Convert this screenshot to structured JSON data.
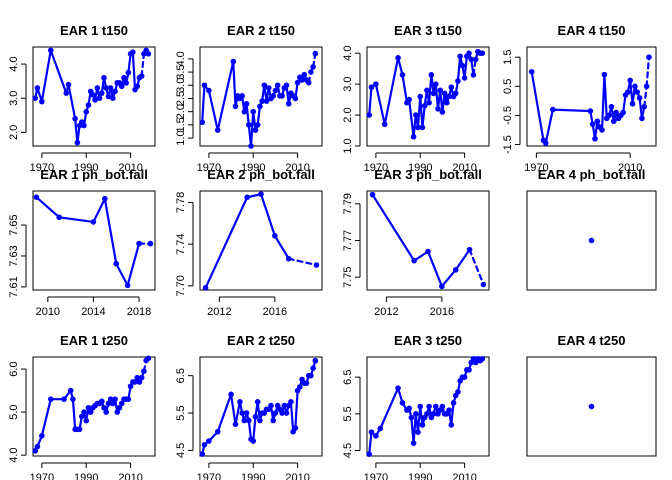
{
  "chart_data": [
    {
      "type": "line",
      "title": "EAR 1 t150",
      "xlim": [
        1966,
        2021
      ],
      "ylim": [
        1.6,
        4.5
      ],
      "xticks": [
        1970,
        1990,
        2010
      ],
      "yticks": [
        2.0,
        3.0,
        4.0
      ],
      "ytick_labels": [
        "2.0",
        "3.0",
        "4.0"
      ],
      "color": "#0000ff",
      "x": [
        1967,
        1968,
        1970,
        1974,
        1981,
        1982,
        1985,
        1986,
        1987,
        1988,
        1989,
        1990,
        1991,
        1992,
        1993,
        1994,
        1995,
        1996,
        1997,
        1998,
        1999,
        2000,
        2001,
        2002,
        2003,
        2004,
        2005,
        2006,
        2007,
        2008,
        2009,
        2010,
        2011,
        2012,
        2013,
        2014,
        2015,
        2016,
        2017,
        2018
      ],
      "y": [
        3.0,
        3.3,
        2.9,
        4.4,
        3.15,
        3.4,
        2.4,
        1.7,
        2.2,
        2.3,
        2.2,
        2.6,
        2.8,
        3.2,
        3.1,
        2.95,
        3.3,
        3.0,
        3.15,
        3.6,
        3.3,
        3.05,
        3.3,
        3.0,
        3.2,
        3.45,
        3.45,
        3.35,
        3.6,
        3.45,
        3.75,
        4.3,
        4.35,
        3.25,
        3.35,
        3.6,
        3.65,
        4.3,
        4.4,
        4.3
      ],
      "dashed_from_index": 36
    },
    {
      "type": "line",
      "title": "EAR 2 t150",
      "xlim": [
        1966,
        2021
      ],
      "ylim": [
        0.7,
        4.45
      ],
      "xticks": [
        1970,
        1990,
        2010
      ],
      "yticks": [
        1.0,
        1.5,
        2.0,
        2.5,
        3.0,
        3.5,
        4.0
      ],
      "ytick_labels": [
        "1.0",
        "1.5",
        "2.0",
        "2.5",
        "3.0",
        "3.5",
        "4.0"
      ],
      "color": "#0000ff",
      "x": [
        1967,
        1968,
        1970,
        1974,
        1981,
        1982,
        1983,
        1984,
        1985,
        1986,
        1987,
        1988,
        1989,
        1990,
        1991,
        1992,
        1993,
        1994,
        1995,
        1996,
        1997,
        1998,
        1999,
        2000,
        2001,
        2002,
        2003,
        2004,
        2005,
        2006,
        2007,
        2008,
        2009,
        2010,
        2011,
        2012,
        2013,
        2014,
        2015,
        2016,
        2017,
        2018
      ],
      "y": [
        1.6,
        3.0,
        2.8,
        1.3,
        3.9,
        2.2,
        2.6,
        2.5,
        2.6,
        2.0,
        2.3,
        1.5,
        0.7,
        2.0,
        1.3,
        1.5,
        2.2,
        2.4,
        3.0,
        2.4,
        2.9,
        2.5,
        2.6,
        2.8,
        3.0,
        2.6,
        2.6,
        2.9,
        3.0,
        2.3,
        2.7,
        2.6,
        2.5,
        3.1,
        3.3,
        3.2,
        3.4,
        3.2,
        3.1,
        3.5,
        3.7,
        4.2
      ],
      "dashed_from_index": 38
    },
    {
      "type": "line",
      "title": "EAR 3 t150",
      "xlim": [
        1966,
        2021
      ],
      "ylim": [
        1.0,
        4.2
      ],
      "xticks": [
        1970,
        1990,
        2010
      ],
      "yticks": [
        1.0,
        2.0,
        3.0,
        4.0
      ],
      "ytick_labels": [
        "1.0",
        "2.0",
        "3.0",
        "4.0"
      ],
      "color": "#0000ff",
      "x": [
        1967,
        1968,
        1970,
        1974,
        1980,
        1982,
        1984,
        1985,
        1987,
        1988,
        1989,
        1990,
        1991,
        1992,
        1993,
        1994,
        1995,
        1996,
        1997,
        1998,
        1999,
        2000,
        2001,
        2002,
        2003,
        2004,
        2005,
        2006,
        2007,
        2008,
        2009,
        2010,
        2011,
        2012,
        2013,
        2014,
        2015,
        2016,
        2017,
        2018
      ],
      "y": [
        2.0,
        2.9,
        3.0,
        1.7,
        3.85,
        3.3,
        2.4,
        2.5,
        1.3,
        2.0,
        1.6,
        2.6,
        1.6,
        2.3,
        2.8,
        2.4,
        3.3,
        2.7,
        3.0,
        2.2,
        2.8,
        2.1,
        2.7,
        2.4,
        2.6,
        2.9,
        2.6,
        2.7,
        3.1,
        3.9,
        3.6,
        3.2,
        3.9,
        4.0,
        3.8,
        3.3,
        3.8,
        4.05,
        4.0,
        4.0
      ],
      "dashed_from_index": 35
    },
    {
      "type": "line",
      "title": "EAR 4 t150",
      "xlim": [
        1966,
        2021
      ],
      "ylim": [
        -1.55,
        1.85
      ],
      "xticks": [
        1970,
        2010
      ],
      "yticks": [
        -1.5,
        -0.5,
        0.5,
        1.5
      ],
      "ytick_labels": [
        "-1.5",
        "-0.5",
        "0.5",
        "1.5"
      ],
      "color": "#0000ff",
      "x": [
        1968,
        1973,
        1974,
        1977,
        1993,
        1994,
        1995,
        1996,
        1997,
        1998,
        1999,
        2000,
        2001,
        2002,
        2003,
        2004,
        2005,
        2006,
        2007,
        2008,
        2009,
        2010,
        2011,
        2012,
        2013,
        2014,
        2015,
        2016,
        2017,
        2018
      ],
      "y": [
        1.0,
        -1.35,
        -1.45,
        -0.3,
        -0.35,
        -0.8,
        -1.3,
        -0.7,
        -0.9,
        -1.0,
        0.9,
        -0.6,
        -0.5,
        -0.2,
        -0.7,
        -0.4,
        -0.6,
        -0.5,
        -0.4,
        0.2,
        0.3,
        0.7,
        -0.1,
        0.5,
        0.3,
        0.1,
        -0.6,
        -0.2,
        0.5,
        1.5
      ],
      "dashed_from_index": 27
    },
    {
      "type": "line",
      "title": "EAR 1 ph_bot.fall",
      "xlim": [
        2008.7,
        2019.4
      ],
      "ylim": [
        7.608,
        7.672
      ],
      "xticks": [
        2010,
        2014,
        2018
      ],
      "yticks": [
        7.61,
        7.63,
        7.65
      ],
      "ytick_labels": [
        "7.61",
        "7.63",
        "7.65"
      ],
      "color": "#0000ff",
      "x": [
        2009,
        2011,
        2014,
        2015,
        2016,
        2017,
        2018,
        2019
      ],
      "y": [
        7.668,
        7.655,
        7.652,
        7.667,
        7.625,
        7.611,
        7.638,
        7.638
      ],
      "dashed_from_index": 6
    },
    {
      "type": "line",
      "title": "EAR 2 ph_bot.fall",
      "xlim": [
        2010.6,
        2019.4
      ],
      "ylim": [
        7.696,
        7.791
      ],
      "xticks": [
        2012,
        2016
      ],
      "yticks": [
        7.7,
        7.74,
        7.78
      ],
      "ytick_labels": [
        "7.70",
        "7.74",
        "7.78"
      ],
      "color": "#0000ff",
      "x": [
        2011,
        2014,
        2015,
        2016,
        2017,
        2019
      ],
      "y": [
        7.698,
        7.785,
        7.788,
        7.748,
        7.726,
        7.72
      ],
      "dashed_from_index": 4
    },
    {
      "type": "line",
      "title": "EAR 3 ph_bot.fall",
      "xlim": [
        2010.6,
        2019.4
      ],
      "ylim": [
        7.743,
        7.797
      ],
      "xticks": [
        2012,
        2016
      ],
      "yticks": [
        7.75,
        7.77,
        7.79
      ],
      "ytick_labels": [
        "7.75",
        "7.77",
        "7.79"
      ],
      "color": "#0000ff",
      "x": [
        2011,
        2014,
        2015,
        2016,
        2017,
        2018,
        2019
      ],
      "y": [
        7.795,
        7.759,
        7.764,
        7.745,
        7.754,
        7.765,
        7.746
      ],
      "dashed_from_index": 5
    },
    {
      "type": "scatter",
      "title": "EAR 4 ph_bot.fall",
      "xlim": [
        0,
        2
      ],
      "ylim": [
        0,
        2
      ],
      "xticks": [],
      "yticks": [],
      "ytick_labels": [],
      "color": "#0000ff",
      "x": [
        1
      ],
      "y": [
        1
      ]
    },
    {
      "type": "line",
      "title": "EAR 1 t250",
      "xlim": [
        1966,
        2021
      ],
      "ylim": [
        3.98,
        6.28
      ],
      "xticks": [
        1970,
        1990,
        2010
      ],
      "yticks": [
        4.0,
        5.0,
        6.0
      ],
      "ytick_labels": [
        "4.0",
        "5.0",
        "6.0"
      ],
      "color": "#0000ff",
      "x": [
        1967,
        1968,
        1970,
        1974,
        1980,
        1983,
        1984,
        1985,
        1986,
        1987,
        1988,
        1989,
        1990,
        1991,
        1992,
        1993,
        1994,
        1995,
        1996,
        1997,
        1998,
        1999,
        2000,
        2001,
        2002,
        2003,
        2004,
        2005,
        2006,
        2007,
        2008,
        2009,
        2010,
        2011,
        2012,
        2013,
        2014,
        2015,
        2016,
        2017,
        2018
      ],
      "y": [
        4.1,
        4.2,
        4.45,
        5.3,
        5.3,
        5.5,
        5.3,
        4.6,
        4.6,
        4.6,
        4.9,
        5.0,
        4.8,
        5.1,
        5.0,
        5.1,
        5.15,
        5.2,
        5.2,
        5.25,
        5.1,
        5.0,
        5.2,
        5.3,
        5.2,
        5.3,
        5.0,
        5.1,
        5.2,
        5.3,
        5.3,
        5.3,
        5.6,
        5.7,
        5.7,
        5.8,
        5.7,
        5.8,
        5.95,
        6.2,
        6.25
      ],
      "dashed_from_index": 38
    },
    {
      "type": "line",
      "title": "EAR 2 t250",
      "xlim": [
        1966,
        2021
      ],
      "ylim": [
        4.35,
        7.0
      ],
      "xticks": [
        1970,
        1990,
        2010
      ],
      "yticks": [
        4.5,
        5.5,
        6.5
      ],
      "ytick_labels": [
        "4.5",
        "5.5",
        "6.5"
      ],
      "color": "#0000ff",
      "x": [
        1967,
        1968,
        1970,
        1974,
        1980,
        1982,
        1984,
        1985,
        1986,
        1987,
        1988,
        1989,
        1990,
        1991,
        1992,
        1993,
        1994,
        1995,
        1996,
        1997,
        1998,
        1999,
        2000,
        2001,
        2002,
        2003,
        2004,
        2005,
        2006,
        2007,
        2008,
        2009,
        2010,
        2011,
        2012,
        2013,
        2014,
        2015,
        2016,
        2017,
        2018
      ],
      "y": [
        4.4,
        4.65,
        4.75,
        5.0,
        6.0,
        5.2,
        5.8,
        5.5,
        5.3,
        5.5,
        5.3,
        4.8,
        4.75,
        5.4,
        5.8,
        5.3,
        5.5,
        5.5,
        5.6,
        5.6,
        5.7,
        5.3,
        5.5,
        5.7,
        5.6,
        5.5,
        5.7,
        5.5,
        5.7,
        5.8,
        5.0,
        5.1,
        6.1,
        6.2,
        6.4,
        6.3,
        6.3,
        6.5,
        6.5,
        6.7,
        6.9
      ],
      "dashed_from_index": 37
    },
    {
      "type": "line",
      "title": "EAR 3 t250",
      "xlim": [
        1966,
        2021
      ],
      "ylim": [
        4.35,
        7.05
      ],
      "xticks": [
        1970,
        1990,
        2010
      ],
      "yticks": [
        4.5,
        5.5,
        6.5
      ],
      "ytick_labels": [
        "4.5",
        "5.5",
        "6.5"
      ],
      "color": "#0000ff",
      "x": [
        1967,
        1968,
        1970,
        1972,
        1980,
        1982,
        1984,
        1985,
        1986,
        1987,
        1988,
        1989,
        1990,
        1991,
        1992,
        1993,
        1994,
        1995,
        1996,
        1997,
        1998,
        1999,
        2000,
        2001,
        2002,
        2003,
        2004,
        2005,
        2006,
        2007,
        2008,
        2009,
        2010,
        2011,
        2012,
        2013,
        2014,
        2015,
        2016,
        2017,
        2018
      ],
      "y": [
        4.4,
        5.0,
        4.9,
        5.1,
        6.2,
        5.8,
        5.6,
        5.65,
        5.4,
        4.7,
        5.5,
        5.0,
        5.7,
        5.2,
        5.4,
        5.5,
        5.7,
        5.4,
        5.5,
        5.7,
        5.5,
        5.6,
        5.7,
        5.5,
        5.5,
        5.6,
        5.2,
        5.8,
        6.0,
        6.1,
        6.4,
        6.5,
        6.5,
        6.7,
        6.7,
        6.9,
        7.0,
        6.9,
        7.0,
        6.95,
        7.0
      ],
      "dashed_from_index": 37
    },
    {
      "type": "scatter",
      "title": "EAR 4 t250",
      "xlim": [
        0,
        2
      ],
      "ylim": [
        0,
        2
      ],
      "xticks": [],
      "yticks": [],
      "ytick_labels": [],
      "color": "#0000ff",
      "x": [
        1
      ],
      "y": [
        1
      ]
    }
  ]
}
